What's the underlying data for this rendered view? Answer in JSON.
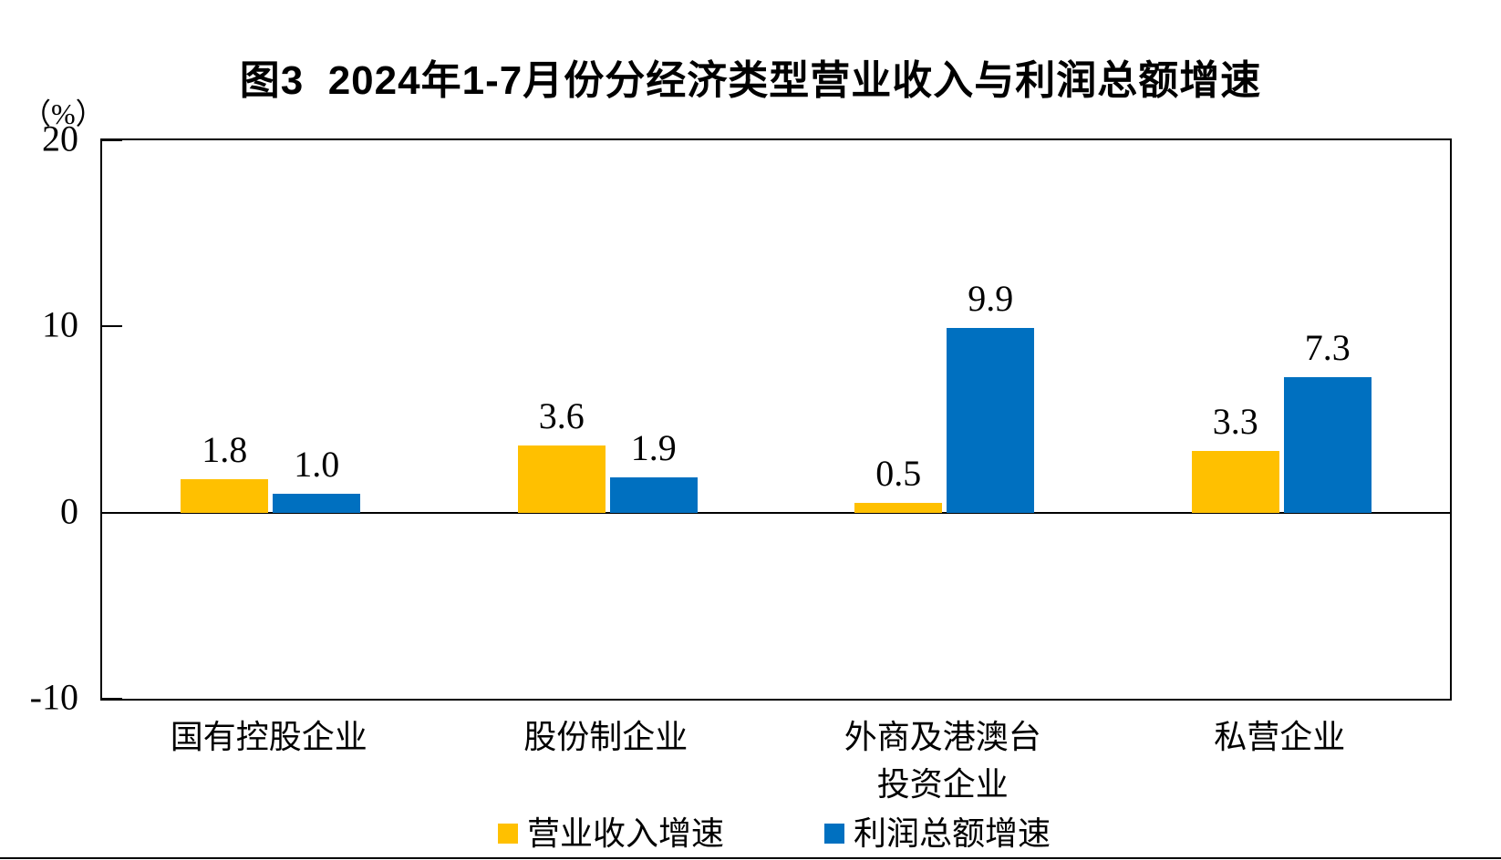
{
  "page": {
    "background": "#FFFFFF",
    "bottom_rule_visible": true
  },
  "chart_data": {
    "type": "bar",
    "title": "图3  2024年1-7月份分经济类型营业收入与利润总额增速",
    "unit_label": "（%）",
    "categories": [
      "国有控股企业",
      "股份制企业",
      "外商及港澳台投资企业",
      "私营企业"
    ],
    "category_display_lines": [
      [
        "国有控股企业"
      ],
      [
        "股份制企业"
      ],
      [
        "外商及港澳台",
        "投资企业"
      ],
      [
        "私营企业"
      ]
    ],
    "series": [
      {
        "name": "营业收入增速",
        "color": "#FFC000",
        "values": [
          1.8,
          3.6,
          0.5,
          3.3
        ]
      },
      {
        "name": "利润总额增速",
        "color": "#0070C0",
        "values": [
          1.0,
          1.9,
          9.9,
          7.3
        ]
      }
    ],
    "data_labels": [
      [
        "1.8",
        "3.6",
        "0.5",
        "3.3"
      ],
      [
        "1.0",
        "1.9",
        "9.9",
        "7.3"
      ]
    ],
    "xlabel": "",
    "ylabel": "",
    "ylim": [
      -10,
      20
    ],
    "yticks": [
      20,
      10,
      0,
      -10
    ],
    "grid": false,
    "legend_position": "bottom",
    "axis_color": "#000000",
    "text_color": "#000000"
  }
}
